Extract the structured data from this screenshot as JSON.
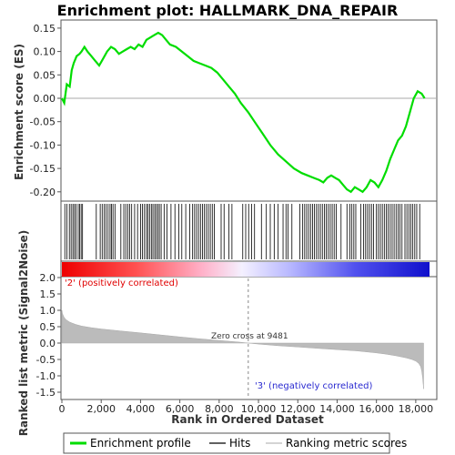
{
  "title": "Enrichment plot: HALLMARK_DNA_REPAIR",
  "colors": {
    "es_line": "#00dd00",
    "hits": "#000000",
    "metric_fill": "#bbbbbb",
    "pos_label": "#e00000",
    "neg_label": "#2a2ad0",
    "gradient_pos": "#ee0000",
    "gradient_neg": "#1010cc"
  },
  "chart_data": [
    {
      "type": "line",
      "name": "enrichment-profile",
      "ylabel": "Enrichment score (ES)",
      "xlim": [
        0,
        18700
      ],
      "ylim": [
        -0.22,
        0.16
      ],
      "yticks": [
        0.15,
        0.1,
        0.05,
        0.0,
        -0.05,
        -0.1,
        -0.15,
        -0.2
      ],
      "ytick_labels": [
        "0.15",
        "0.10",
        "0.05",
        "0.00",
        "-0.05",
        "-0.10",
        "-0.15",
        "-0.20"
      ],
      "zero_line": true,
      "x": [
        0,
        120,
        250,
        400,
        500,
        600,
        750,
        900,
        1000,
        1150,
        1300,
        1500,
        1700,
        1900,
        2100,
        2300,
        2500,
        2700,
        2900,
        3100,
        3300,
        3500,
        3700,
        3900,
        4100,
        4300,
        4500,
        4700,
        4900,
        5100,
        5300,
        5500,
        5800,
        6100,
        6400,
        6700,
        7000,
        7300,
        7600,
        7900,
        8200,
        8500,
        8800,
        9100,
        9481,
        9800,
        10200,
        10600,
        11000,
        11400,
        11800,
        12200,
        12500,
        12800,
        13100,
        13300,
        13500,
        13700,
        13900,
        14100,
        14300,
        14500,
        14700,
        14900,
        15100,
        15300,
        15500,
        15700,
        15900,
        16100,
        16300,
        16500,
        16700,
        16900,
        17100,
        17300,
        17500,
        17700,
        17900,
        18100,
        18300,
        18450
      ],
      "y": [
        0.0,
        -0.01,
        0.03,
        0.025,
        0.06,
        0.075,
        0.09,
        0.095,
        0.1,
        0.11,
        0.1,
        0.09,
        0.08,
        0.07,
        0.085,
        0.1,
        0.11,
        0.105,
        0.095,
        0.1,
        0.105,
        0.11,
        0.105,
        0.115,
        0.11,
        0.125,
        0.13,
        0.135,
        0.14,
        0.135,
        0.125,
        0.115,
        0.11,
        0.1,
        0.09,
        0.08,
        0.075,
        0.07,
        0.065,
        0.055,
        0.04,
        0.025,
        0.01,
        -0.01,
        -0.03,
        -0.05,
        -0.075,
        -0.1,
        -0.12,
        -0.135,
        -0.15,
        -0.16,
        -0.165,
        -0.17,
        -0.175,
        -0.18,
        -0.17,
        -0.165,
        -0.17,
        -0.175,
        -0.185,
        -0.195,
        -0.2,
        -0.19,
        -0.195,
        -0.2,
        -0.19,
        -0.175,
        -0.18,
        -0.19,
        -0.175,
        -0.155,
        -0.13,
        -0.11,
        -0.09,
        -0.08,
        -0.06,
        -0.03,
        0.0,
        0.015,
        0.01,
        0.0
      ]
    },
    {
      "type": "scatter",
      "name": "hits",
      "xlim": [
        0,
        18700
      ],
      "x": [
        150,
        260,
        380,
        470,
        560,
        640,
        720,
        830,
        900,
        980,
        1050,
        1750,
        1950,
        2050,
        2150,
        2250,
        2350,
        2450,
        2520,
        2600,
        2700,
        3000,
        3150,
        3250,
        3350,
        3450,
        3550,
        3700,
        3850,
        4000,
        4100,
        4200,
        4300,
        4380,
        4460,
        4550,
        4630,
        4720,
        4800,
        4880,
        4960,
        5050,
        5200,
        5350,
        5550,
        5750,
        5950,
        6100,
        6300,
        6500,
        6650,
        6750,
        6850,
        6950,
        7050,
        7150,
        7250,
        7350,
        7450,
        7550,
        7650,
        7750,
        8100,
        8250,
        8500,
        8650,
        9200,
        9350,
        9500,
        9650,
        9800,
        10150,
        10400,
        10600,
        10800,
        11000,
        11250,
        11400,
        11500,
        11700,
        12100,
        12250,
        12350,
        12450,
        12550,
        12650,
        12750,
        12850,
        12950,
        13050,
        13150,
        13250,
        13350,
        13450,
        13550,
        13650,
        13750,
        13850,
        13950,
        14200,
        14500,
        14650,
        14750,
        14850,
        14950,
        15200,
        15350,
        15450,
        15550,
        15650,
        15750,
        15850,
        16000,
        16100,
        16200,
        16300,
        16400,
        16500,
        16600,
        16700,
        16800,
        16900,
        17000,
        17100,
        17200,
        17300,
        17450,
        17550,
        17650,
        17750,
        17850,
        17950,
        18050,
        18200
      ]
    },
    {
      "type": "area",
      "name": "ranking-metric",
      "xlabel": "Rank in Ordered Dataset",
      "ylabel": "Ranked list metric (Signal2Noise)",
      "xlim": [
        0,
        18700
      ],
      "ylim": [
        -1.6,
        2.1
      ],
      "xticks": [
        0,
        2000,
        4000,
        6000,
        8000,
        10000,
        12000,
        14000,
        16000,
        18000
      ],
      "xtick_labels": [
        "0",
        "2,000",
        "4,000",
        "6,000",
        "8,000",
        "10,000",
        "12,000",
        "14,000",
        "16,000",
        "18,000"
      ],
      "yticks": [
        2.0,
        1.5,
        1.0,
        0.5,
        0.0,
        -0.5,
        -1.0,
        -1.5
      ],
      "ytick_labels": [
        "2.0",
        "1.5",
        "1.0",
        "0.5",
        "0.0",
        "-0.5",
        "-1.0",
        "-1.5"
      ],
      "x": [
        0,
        30,
        100,
        200,
        400,
        700,
        1000,
        1500,
        2000,
        3000,
        4000,
        5000,
        6000,
        7000,
        8000,
        9000,
        9481,
        10000,
        11000,
        12000,
        13000,
        14000,
        15000,
        16000,
        16500,
        17000,
        17500,
        17800,
        18000,
        18150,
        18250,
        18300,
        18350,
        18400
      ],
      "y": [
        1.0,
        0.9,
        0.8,
        0.72,
        0.64,
        0.57,
        0.52,
        0.47,
        0.43,
        0.37,
        0.31,
        0.25,
        0.19,
        0.13,
        0.08,
        0.03,
        0.0,
        -0.03,
        -0.08,
        -0.12,
        -0.16,
        -0.2,
        -0.24,
        -0.3,
        -0.34,
        -0.39,
        -0.45,
        -0.5,
        -0.55,
        -0.62,
        -0.72,
        -0.85,
        -1.05,
        -1.4
      ]
    }
  ],
  "annotations": {
    "positive_label": "'2' (positively correlated)",
    "negative_label": "'3' (negatively correlated)",
    "zero_cross_label": "Zero cross at 9481",
    "zero_cross_rank": 9481
  },
  "legend": {
    "items": [
      {
        "label": "Enrichment profile",
        "color": "#00dd00",
        "style": "thick"
      },
      {
        "label": "Hits",
        "color": "#000000",
        "style": "thin"
      },
      {
        "label": "Ranking metric scores",
        "color": "#bbbbbb",
        "style": "thin"
      }
    ]
  }
}
